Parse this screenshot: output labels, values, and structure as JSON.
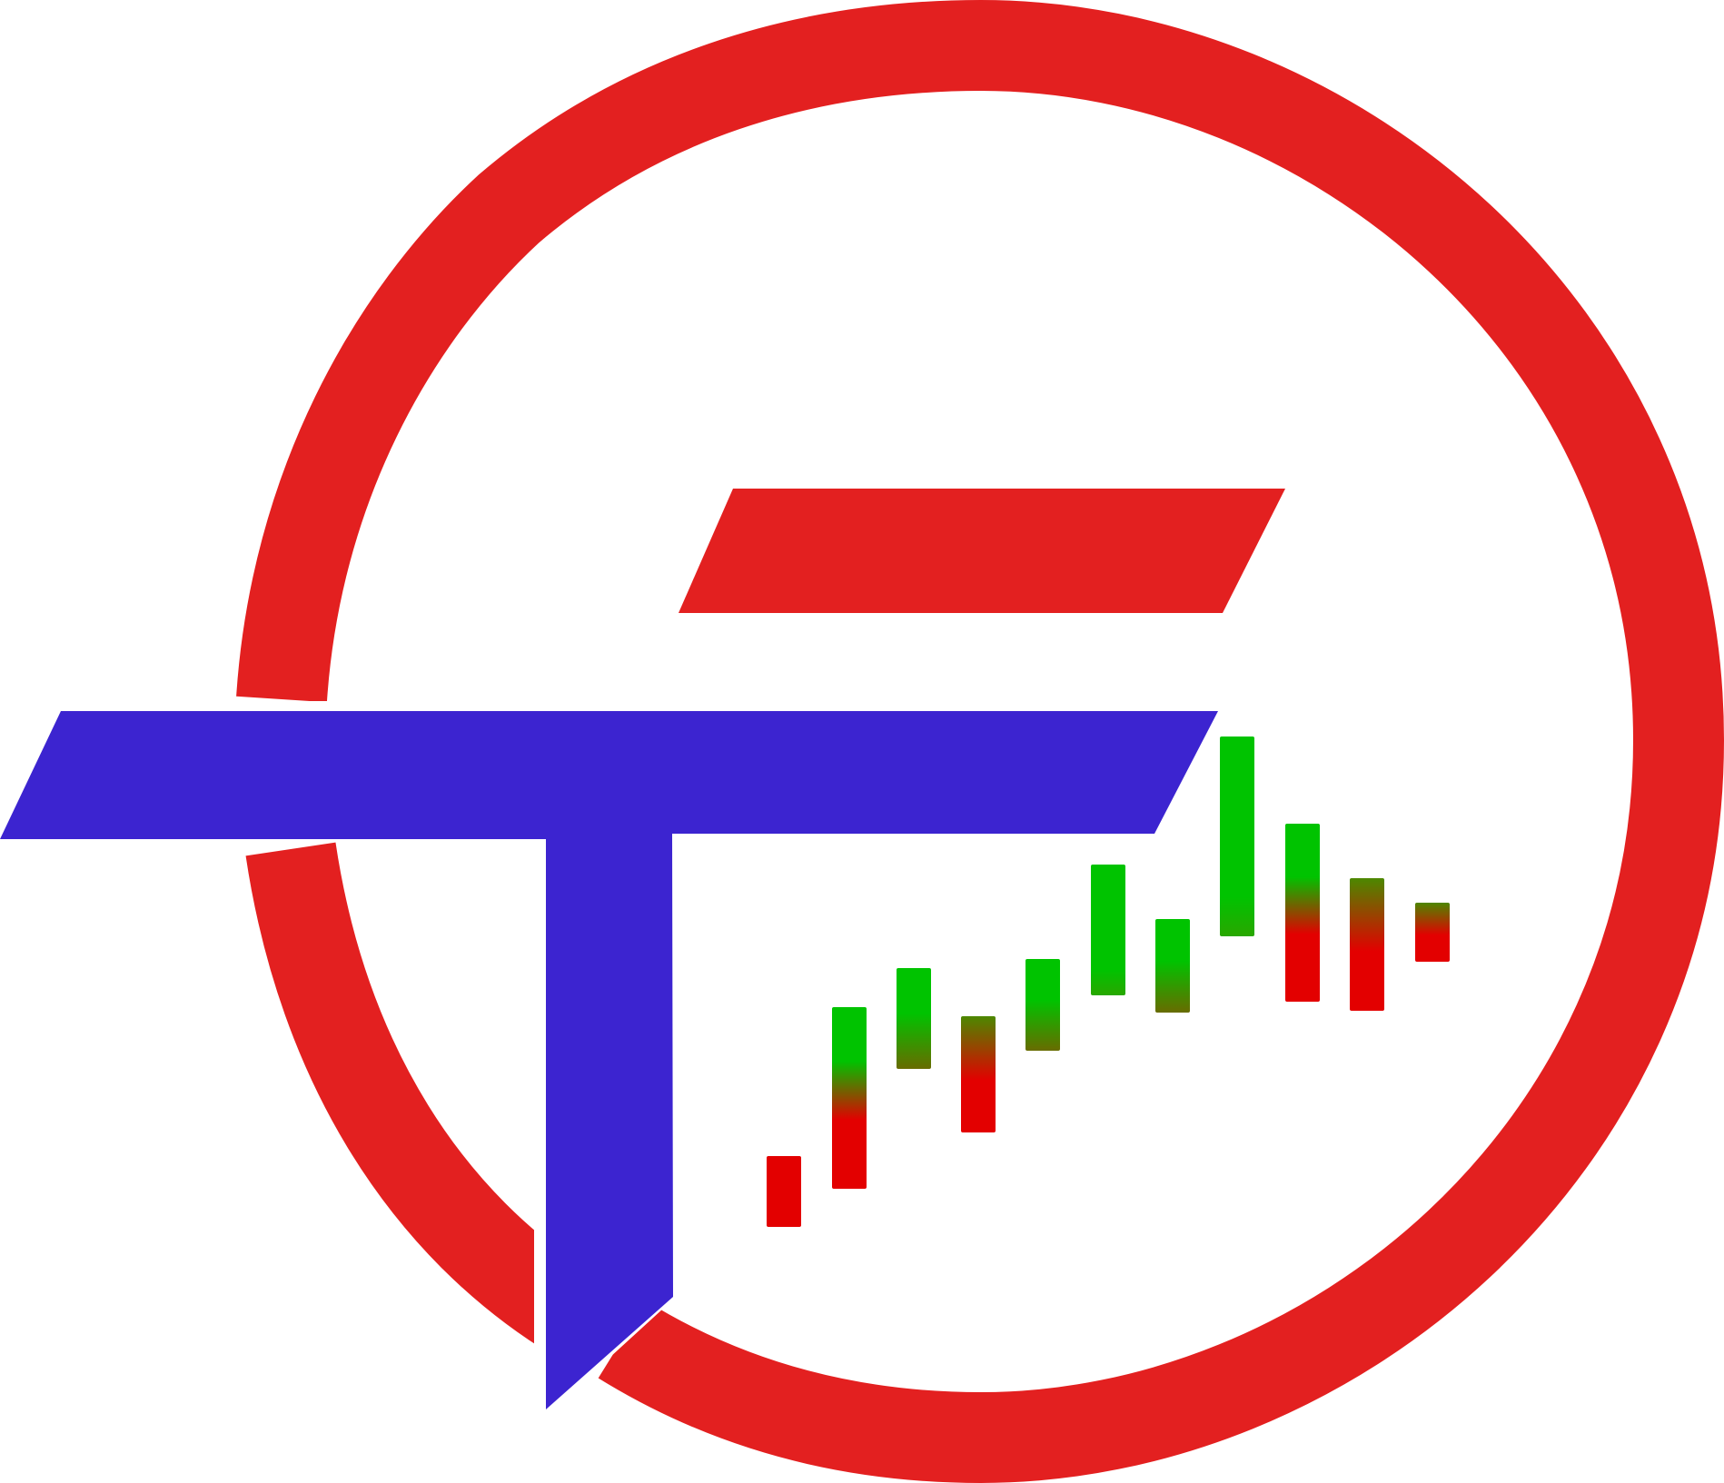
{
  "logo": {
    "colors": {
      "ring": "#e32020",
      "t_bar": "#3c24d0",
      "f_bar": "#e32020",
      "candle_green": "#00c300",
      "candle_red": "#e30000",
      "wick_top": "#5de4f0",
      "wick_bottom": "#3a8fc8",
      "background": "#ffffff"
    },
    "icons": [
      "ring-mark",
      "t-letter-mark",
      "f-bar-mark",
      "candlestick-chart-icon"
    ],
    "candles": [
      {
        "id": 1,
        "top": "red",
        "bottom": "red"
      },
      {
        "id": 2,
        "top": "green",
        "bottom": "red"
      },
      {
        "id": 3,
        "top": "green",
        "bottom": "olive"
      },
      {
        "id": 4,
        "top": "olive",
        "bottom": "red"
      },
      {
        "id": 5,
        "top": "green",
        "bottom": "olive"
      },
      {
        "id": 6,
        "top": "green",
        "bottom": "green"
      },
      {
        "id": 7,
        "top": "green",
        "bottom": "olive"
      },
      {
        "id": 8,
        "top": "green",
        "bottom": "green"
      },
      {
        "id": 9,
        "top": "green",
        "bottom": "red"
      },
      {
        "id": 10,
        "top": "olive",
        "bottom": "red"
      },
      {
        "id": 11,
        "top": "olive",
        "bottom": "red"
      }
    ]
  }
}
